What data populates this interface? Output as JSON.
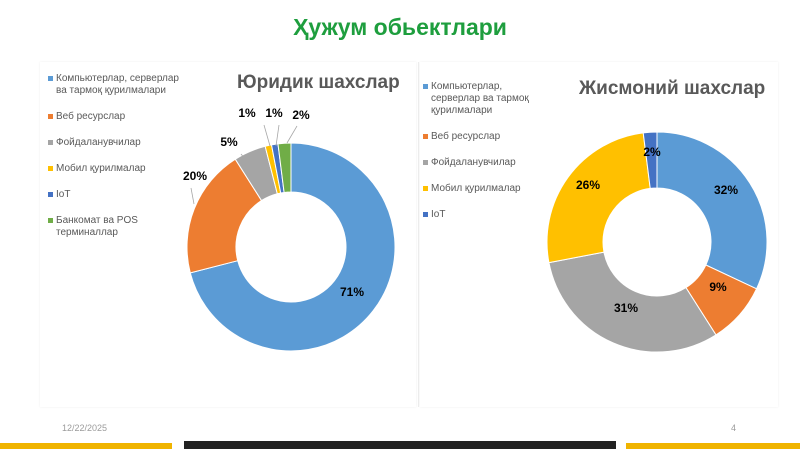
{
  "slide": {
    "title": "Ҳужум обьектлари",
    "date": "12/22/2025",
    "page": "4"
  },
  "chart_data": [
    {
      "type": "pie",
      "title": "Юридик шахслар",
      "legend_position": "left",
      "categories": [
        "Компьютерлар, серверлар ва тармоқ қурилмалари",
        "Веб ресурслар",
        "Фойдаланувчилар",
        "Мобил қурилмалар",
        "IoT",
        "Банкомат ва POS терминаллар"
      ],
      "values": [
        71,
        20,
        5,
        1,
        1,
        2
      ],
      "labels": [
        "71%",
        "20%",
        "5%",
        "1%",
        "1%",
        "2%"
      ],
      "colors": [
        "#5b9bd5",
        "#ed7d31",
        "#a5a5a5",
        "#ffc000",
        "#4472c4",
        "#70ad47"
      ]
    },
    {
      "type": "pie",
      "title": "Жисмоний шахслар",
      "legend_position": "left",
      "categories": [
        "Компьютерлар, серверлар ва тармоқ қурилмалари",
        "Веб ресурслар",
        "Фойдаланувчилар",
        "Мобил қурилмалар",
        "IoT"
      ],
      "values": [
        32,
        9,
        31,
        26,
        2
      ],
      "labels": [
        "32%",
        "9%",
        "31%",
        "26%",
        "2%"
      ],
      "colors": [
        "#5b9bd5",
        "#ed7d31",
        "#a5a5a5",
        "#ffc000",
        "#4472c4"
      ]
    }
  ]
}
